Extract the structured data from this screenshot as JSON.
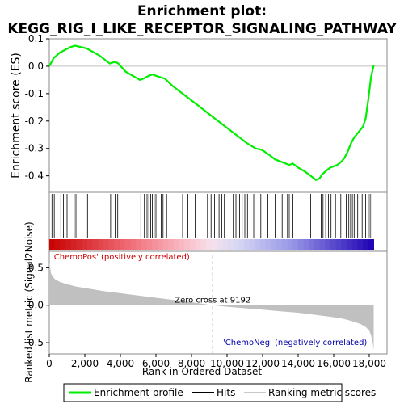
{
  "chart_data": {
    "type": "line",
    "title_line1": "Enrichment plot:",
    "title_line2": "KEGG_RIG_I_LIKE_RECEPTOR_SIGNALING_PATHWAY",
    "es_panel": {
      "ylabel": "Enrichment score (ES)",
      "ylim": [
        -0.46,
        0.1
      ],
      "yticks": [
        0.1,
        0.0,
        -0.1,
        -0.2,
        -0.3,
        -0.4
      ],
      "ytick_labels": [
        "0.1",
        "0.0",
        "-0.1",
        "-0.2",
        "-0.3",
        "-0.4"
      ],
      "series": [
        {
          "name": "Enrichment profile",
          "color": "#00ee00",
          "x": [
            0,
            250,
            600,
            900,
            1200,
            1450,
            2100,
            2800,
            3400,
            3650,
            3850,
            4300,
            4700,
            5100,
            5300,
            5600,
            5800,
            6000,
            6250,
            6500,
            6900,
            7300,
            7700,
            8100,
            8600,
            9100,
            9600,
            10100,
            10600,
            11100,
            11600,
            11950,
            12300,
            12700,
            13100,
            13500,
            13700,
            14000,
            14400,
            14800,
            15000,
            15200,
            15350,
            15600,
            15800,
            16000,
            16200,
            16400,
            16600,
            16800,
            16950,
            17150,
            17400,
            17650,
            17800,
            17950,
            18100,
            18250
          ],
          "y": [
            0.0,
            0.03,
            0.05,
            0.06,
            0.07,
            0.075,
            0.065,
            0.04,
            0.01,
            0.015,
            0.012,
            -0.02,
            -0.035,
            -0.05,
            -0.045,
            -0.035,
            -0.03,
            -0.035,
            -0.04,
            -0.045,
            -0.07,
            -0.09,
            -0.11,
            -0.13,
            -0.155,
            -0.18,
            -0.205,
            -0.23,
            -0.255,
            -0.28,
            -0.3,
            -0.305,
            -0.32,
            -0.34,
            -0.35,
            -0.36,
            -0.355,
            -0.37,
            -0.385,
            -0.405,
            -0.415,
            -0.41,
            -0.395,
            -0.38,
            -0.37,
            -0.365,
            -0.36,
            -0.35,
            -0.335,
            -0.31,
            -0.285,
            -0.26,
            -0.24,
            -0.22,
            -0.19,
            -0.12,
            -0.04,
            0.003
          ]
        }
      ]
    },
    "hits": [
      150,
      280,
      650,
      800,
      1000,
      1400,
      1500,
      2150,
      3450,
      3700,
      3850,
      5150,
      5350,
      5500,
      5600,
      5700,
      5800,
      5900,
      6000,
      6300,
      6400,
      6600,
      7500,
      7800,
      8200,
      8900,
      9100,
      9300,
      9550,
      9700,
      9850,
      10350,
      10500,
      10700,
      10850,
      11000,
      11150,
      11500,
      11900,
      12300,
      12700,
      13100,
      13400,
      13500,
      13700,
      14700,
      15300,
      15400,
      15550,
      15700,
      15850,
      16100,
      16400,
      16700,
      16850,
      16950,
      17050,
      17150,
      17350,
      17600,
      17800,
      17950,
      18050,
      18150
    ],
    "metric_panel": {
      "ylabel": "Ranked list metric (Signal2Noise)",
      "ylim": [
        -0.65,
        0.72
      ],
      "yticks": [
        0.5,
        0.0,
        -0.5
      ],
      "ytick_labels": [
        "0.5",
        "0.0",
        "-0.5"
      ],
      "x": [
        0,
        100,
        300,
        600,
        1000,
        1500,
        2000,
        3000,
        4000,
        5000,
        6000,
        7000,
        8000,
        9192,
        10000,
        11000,
        12000,
        13000,
        14000,
        15000,
        16000,
        16500,
        17000,
        17500,
        17800,
        18000,
        18100,
        18200,
        18250
      ],
      "y": [
        0.58,
        0.42,
        0.35,
        0.31,
        0.28,
        0.25,
        0.23,
        0.19,
        0.16,
        0.13,
        0.1,
        0.07,
        0.04,
        0.0,
        -0.02,
        -0.04,
        -0.06,
        -0.08,
        -0.1,
        -0.13,
        -0.16,
        -0.18,
        -0.21,
        -0.25,
        -0.29,
        -0.34,
        -0.4,
        -0.5,
        -0.6
      ],
      "zero_cross_label": "Zero cross at 9192",
      "zero_cross_x": 9192,
      "pos_label": "'ChemoPos' (positively correlated)",
      "neg_label": "'ChemoNeg' (negatively correlated)"
    },
    "xaxis": {
      "xlabel": "Rank in Ordered Dataset",
      "xlim": [
        0,
        19000
      ],
      "xticks": [
        0,
        2000,
        4000,
        6000,
        8000,
        10000,
        12000,
        14000,
        16000,
        18000
      ],
      "xtick_labels": [
        "0",
        "2,000",
        "4,000",
        "6,000",
        "8,000",
        "10,000",
        "12,000",
        "14,000",
        "16,000",
        "18,000"
      ],
      "max_rank": 18250
    },
    "legend": {
      "items": [
        {
          "label": "Enrichment profile",
          "color": "#00ee00"
        },
        {
          "label": "Hits",
          "color": "#000000"
        },
        {
          "label": "Ranking metric scores",
          "color": "#c8c8c8"
        }
      ]
    },
    "colors": {
      "profile": "#00ee00",
      "metric_fill": "#c0c0c0",
      "pos_text": "#cc0000",
      "neg_text": "#0000aa",
      "zero_line": "#999999"
    }
  }
}
